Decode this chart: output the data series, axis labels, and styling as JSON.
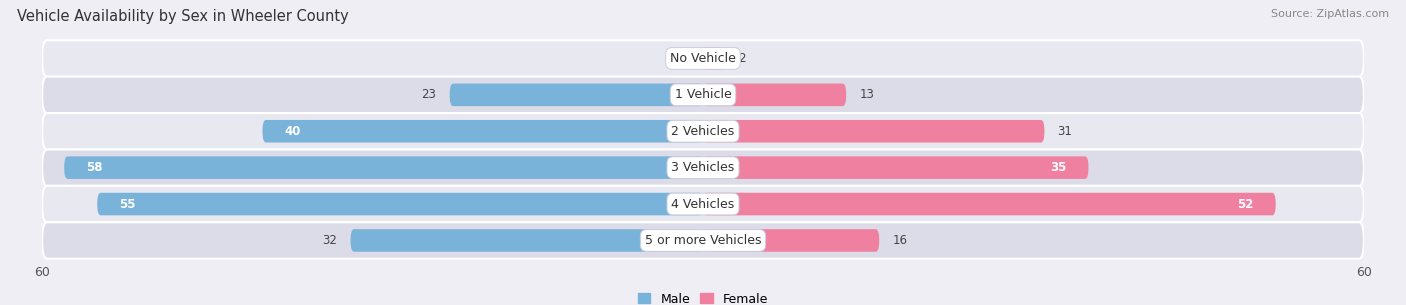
{
  "title": "Vehicle Availability by Sex in Wheeler County",
  "source": "Source: ZipAtlas.com",
  "categories": [
    "No Vehicle",
    "1 Vehicle",
    "2 Vehicles",
    "3 Vehicles",
    "4 Vehicles",
    "5 or more Vehicles"
  ],
  "male_values": [
    0,
    23,
    40,
    58,
    55,
    32
  ],
  "female_values": [
    2,
    13,
    31,
    35,
    52,
    16
  ],
  "male_color": "#7ab3d9",
  "female_color": "#f080a0",
  "bar_height": 0.62,
  "xlim": 60,
  "background_color": "#eeeef4",
  "row_colors": [
    "#e8e8f0",
    "#dcdce8"
  ],
  "title_fontsize": 10.5,
  "source_fontsize": 8,
  "tick_fontsize": 9,
  "value_fontsize": 8.5,
  "category_fontsize": 9,
  "label_inside_threshold_male": 35,
  "label_inside_threshold_female": 35
}
